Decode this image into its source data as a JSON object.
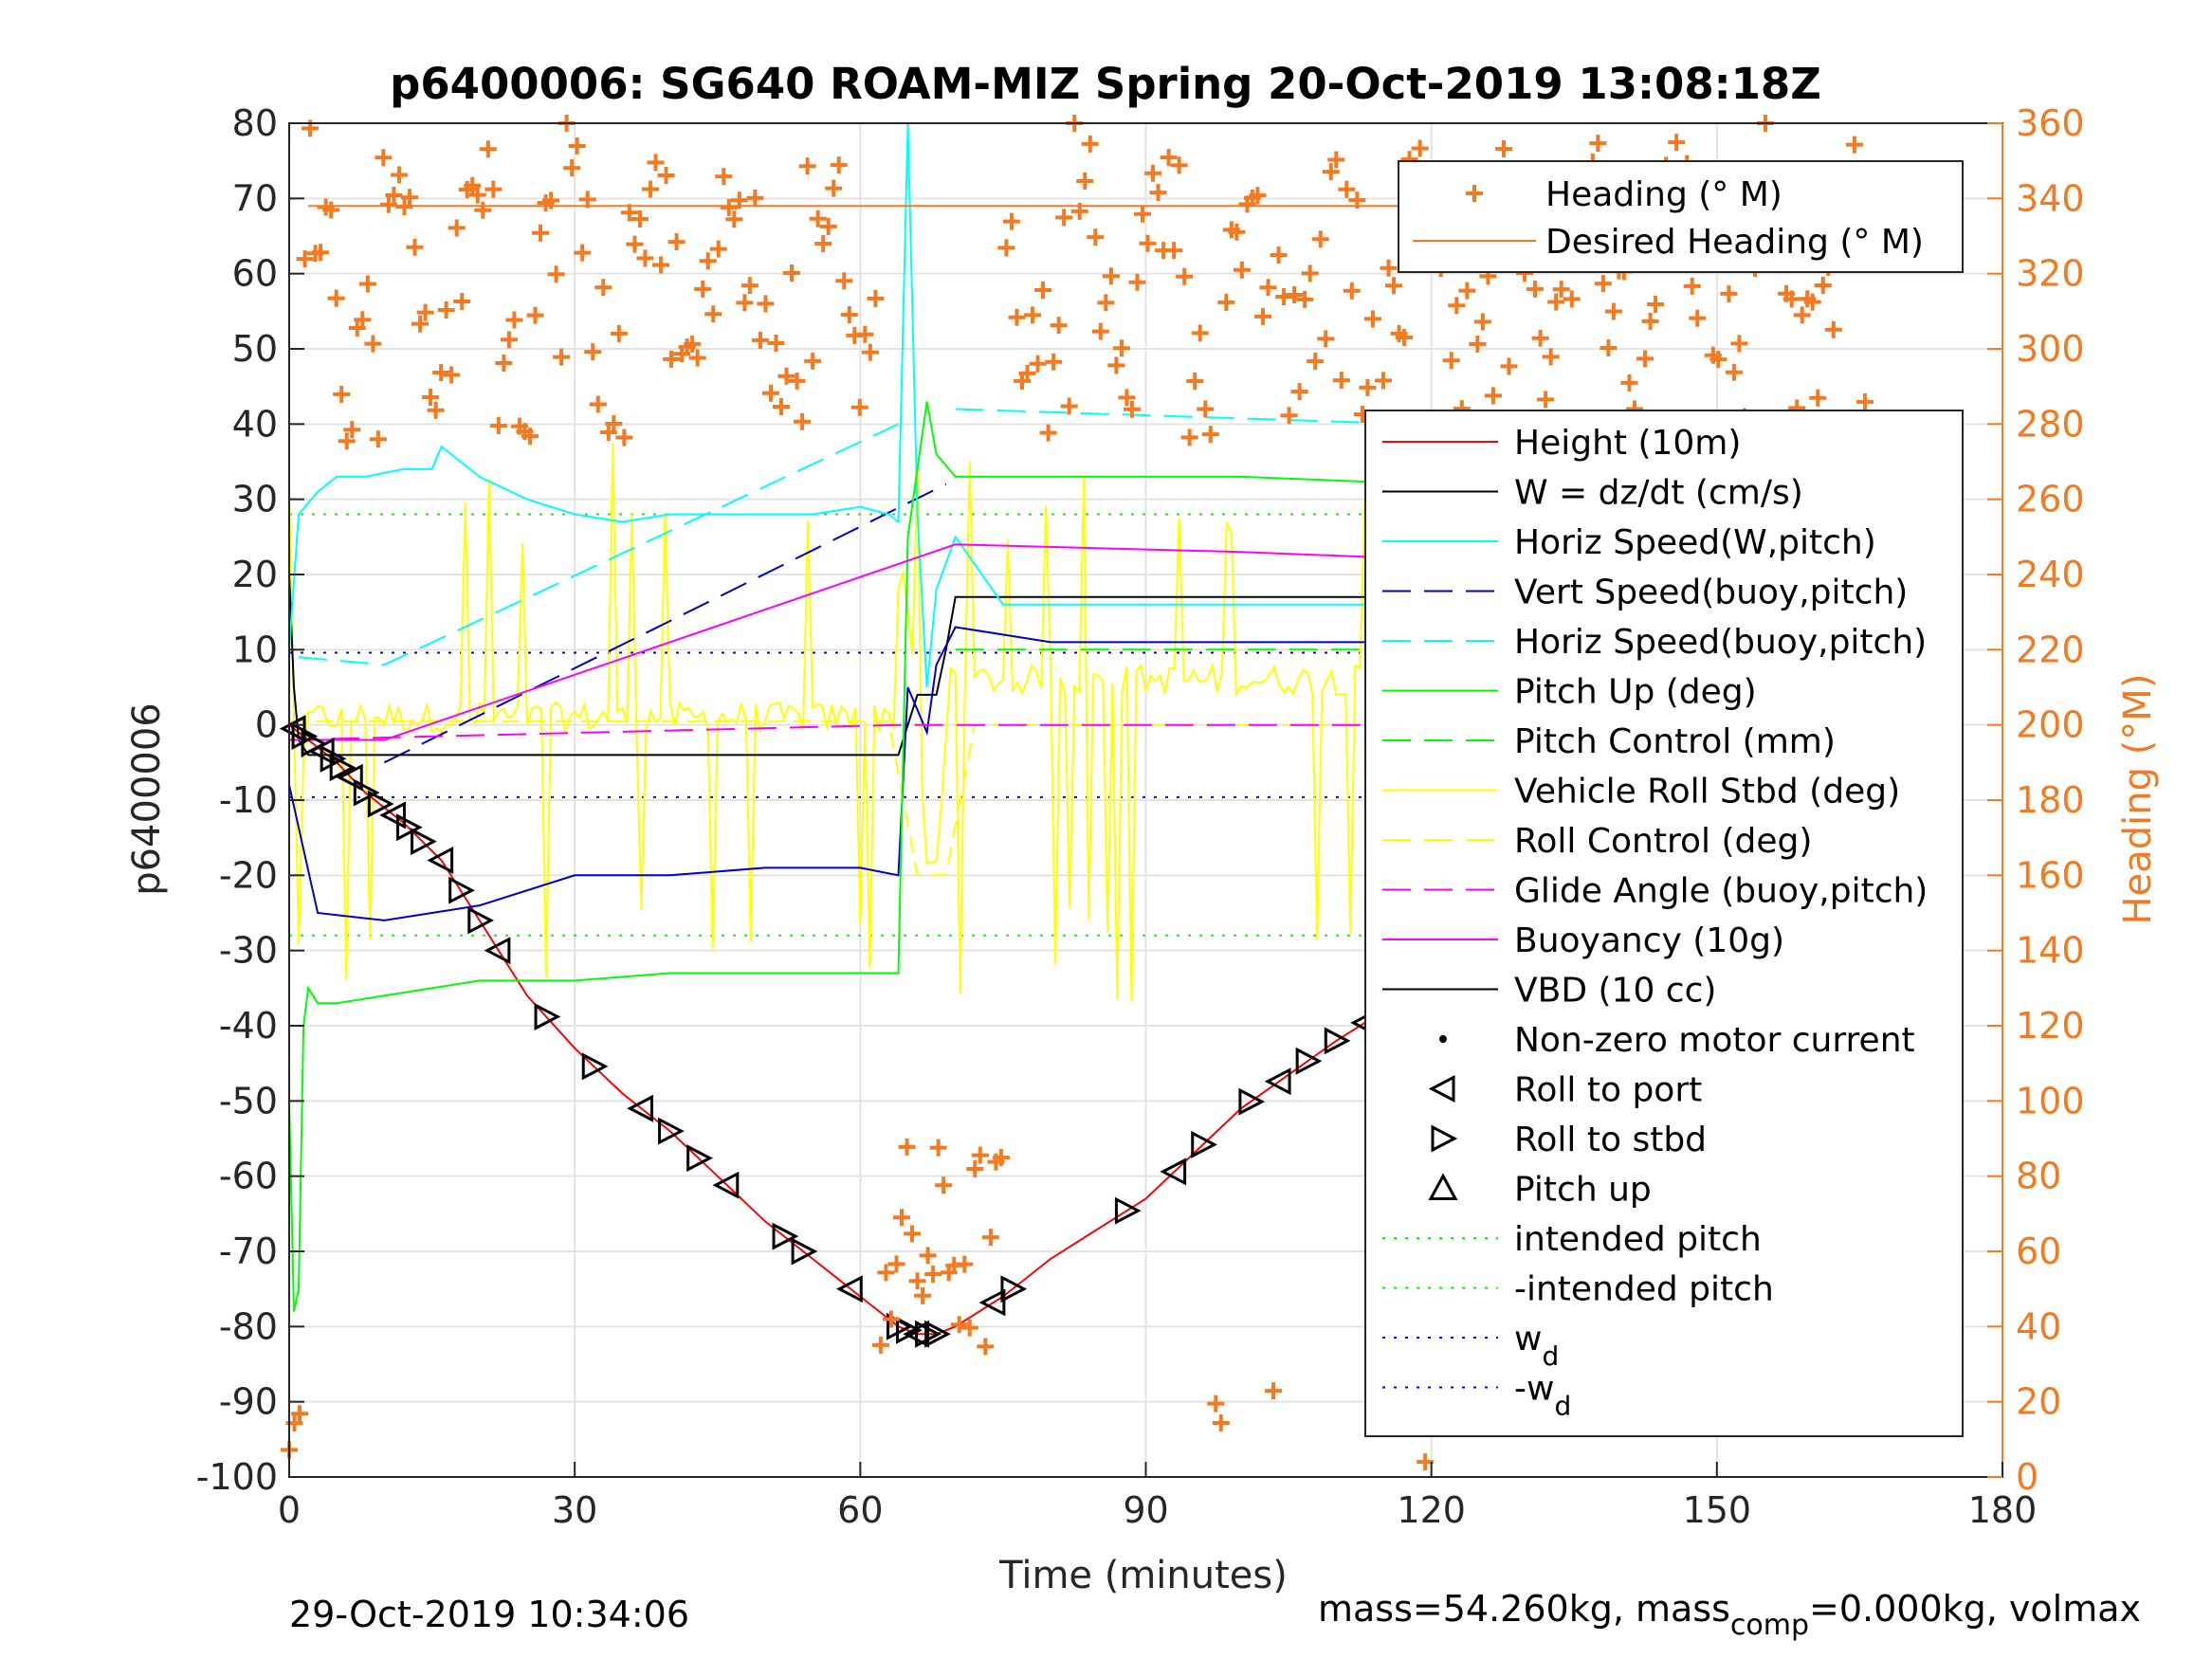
{
  "chart_data": {
    "type": "line",
    "title": "p6400006: SG640 ROAM-MIZ Spring 20-Oct-2019 13:08:18Z",
    "xlabel": "Time (minutes)",
    "ylabel": "p6400006",
    "ylabel_right": "Heading (°M)",
    "xlim": [
      0,
      180
    ],
    "ylim": [
      -100,
      80
    ],
    "ylim_right": [
      0,
      360
    ],
    "x_ticks": [
      "0",
      "30",
      "60",
      "90",
      "120",
      "150",
      "180"
    ],
    "y_ticks": [
      "80",
      "70",
      "60",
      "50",
      "40",
      "30",
      "20",
      "10",
      "0",
      "-10",
      "-20",
      "-30",
      "-40",
      "-50",
      "-60",
      "-70",
      "-80",
      "-90",
      "-100"
    ],
    "y_right_ticks": [
      "360",
      "340",
      "320",
      "300",
      "280",
      "260",
      "240",
      "220",
      "200",
      "180",
      "160",
      "140",
      "120",
      "100",
      "80",
      "60",
      "40",
      "20",
      "0"
    ],
    "grid": true,
    "colors": {
      "heading": "#f37a21",
      "height": "#ff0000",
      "w": "#000000",
      "horiz_w": "#00ffff",
      "vert_buoy": "#0000cc",
      "pitch": "#00ff00",
      "roll": "#ffff00",
      "buoyancy": "#ff00ff",
      "wd": "#0000ff"
    },
    "legend_heading": {
      "placement": "top-right",
      "entries": [
        "Heading (° M)",
        "Desired Heading (° M)"
      ]
    },
    "legend_main": {
      "placement": "right",
      "entries": [
        "Height (10m)",
        "W = dz/dt (cm/s)",
        "Horiz Speed(W,pitch)",
        "Vert Speed(buoy,pitch)",
        "Horiz Speed(buoy,pitch)",
        "Pitch Up (deg)",
        "Pitch Control (mm)",
        "Vehicle Roll Stbd (deg)",
        "Roll Control (deg)",
        "Glide Angle (buoy,pitch)",
        "Buoyancy (10g)",
        "VBD (10 cc)",
        "Non-zero motor current",
        "Roll to port",
        "Roll to stbd",
        "Pitch up",
        "intended pitch",
        "-intended pitch",
        "w",
        "-w"
      ],
      "subscript": "d"
    },
    "series": [
      {
        "name": "Height (10m)",
        "x": [
          0,
          2,
          5,
          8,
          12,
          16,
          20,
          25,
          30,
          35,
          40,
          45,
          50,
          55,
          60,
          64,
          66,
          68,
          70,
          75,
          80,
          90,
          100,
          110,
          120,
          130,
          140,
          150,
          160,
          166
        ],
        "y": [
          0,
          -2,
          -5,
          -9,
          -13,
          -18,
          -26,
          -36,
          -43,
          -49,
          -54,
          -60,
          -66,
          -71,
          -76,
          -80,
          -81,
          -81,
          -80,
          -76,
          -71,
          -63,
          -51,
          -42,
          -34,
          -23,
          -16,
          -10,
          -4,
          0
        ]
      },
      {
        "name": "W = dz/dt (cm/s)",
        "x": [
          0,
          0.5,
          1,
          2,
          5,
          10,
          30,
          50,
          64,
          65,
          66,
          67,
          68,
          69,
          70,
          80,
          100,
          120,
          140,
          160,
          165
        ],
        "y": [
          20,
          5,
          -2,
          -4,
          -4,
          -4,
          -4,
          -4,
          -4,
          0,
          4,
          4,
          4,
          10,
          17,
          17,
          17,
          17,
          17,
          17,
          17
        ]
      },
      {
        "name": "Horiz Speed(W,pitch)",
        "x": [
          0,
          1,
          3,
          5,
          8,
          12,
          15,
          16,
          20,
          25,
          30,
          35,
          40,
          45,
          50,
          55,
          60,
          63,
          64,
          65,
          66,
          67,
          68,
          70,
          75,
          80,
          90,
          100,
          110,
          120,
          130,
          140,
          150,
          160,
          166
        ],
        "y": [
          10,
          28,
          31,
          33,
          33,
          34,
          34,
          37,
          33,
          30,
          28,
          27,
          28,
          28,
          28,
          28,
          29,
          28,
          27,
          80,
          28,
          5,
          18,
          25,
          16,
          16,
          16,
          16,
          16,
          16,
          15,
          12,
          11,
          12,
          13
        ]
      },
      {
        "name": "Vert Speed(buoy,pitch)",
        "x": [
          0,
          3,
          10,
          20,
          30,
          40,
          50,
          60,
          64,
          65,
          66,
          67,
          68,
          70,
          80,
          90,
          100,
          110,
          120,
          130,
          140,
          150,
          160,
          166
        ],
        "y": [
          -8,
          -25,
          -26,
          -24,
          -20,
          -20,
          -19,
          -19,
          -20,
          5,
          2,
          -1,
          8,
          13,
          11,
          11,
          11,
          11,
          11,
          11,
          10,
          10,
          10,
          12
        ]
      },
      {
        "name": "Pitch Up (deg)",
        "x": [
          0,
          0.5,
          1,
          1.5,
          2,
          3,
          5,
          10,
          20,
          30,
          40,
          50,
          60,
          64,
          65,
          67,
          68,
          70,
          80,
          100,
          120,
          140,
          160,
          166
        ],
        "y": [
          -50,
          -78,
          -75,
          -40,
          -35,
          -37,
          -37,
          -36,
          -34,
          -34,
          -33,
          -33,
          -33,
          -33,
          25,
          43,
          36,
          33,
          33,
          33,
          32,
          32,
          32,
          0
        ]
      },
      {
        "name": "Buoyancy (10g)",
        "x": [
          0,
          10,
          70,
          100,
          120,
          140,
          166
        ],
        "y": [
          -2,
          -2,
          24,
          23,
          22,
          20,
          20
        ]
      },
      {
        "name": "Glide Angle (buoy,pitch)",
        "x": [
          0,
          64,
          166
        ],
        "y": [
          -2,
          0,
          0
        ]
      }
    ]
  },
  "footer": {
    "timestamp": "29-Oct-2019 10:34:06",
    "mass_text": "mass=54.260kg, mass",
    "mass_sub": "comp",
    "mass_rest": "=0.000kg, volmax"
  }
}
